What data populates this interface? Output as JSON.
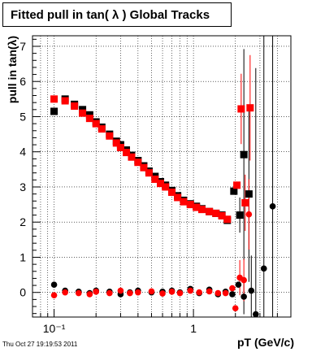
{
  "chart_data": {
    "type": "scatter",
    "title": "Fitted pull in tan( λ )  Global Tracks",
    "xlabel": "pT (GeV/c)",
    "ylabel": "pull in tan(λ)",
    "x_scale": "log",
    "xlim": [
      0.07,
      5.0
    ],
    "ylim": [
      -0.7,
      7.3
    ],
    "grid": true,
    "x_ticks": [
      {
        "value": 0.1,
        "label": "10⁻¹"
      },
      {
        "value": 1,
        "label": "1"
      }
    ],
    "y_ticks": [
      0,
      1,
      2,
      3,
      4,
      5,
      6,
      7
    ],
    "series": [
      {
        "color": "#000000",
        "marker": "square",
        "points": [
          [
            0.1,
            5.15
          ],
          [
            0.12,
            5.5
          ],
          [
            0.14,
            5.35
          ],
          [
            0.16,
            5.2
          ],
          [
            0.18,
            5.05
          ],
          [
            0.2,
            4.85
          ],
          [
            0.22,
            4.7
          ],
          [
            0.25,
            4.5
          ],
          [
            0.28,
            4.3
          ],
          [
            0.3,
            4.2
          ],
          [
            0.33,
            4.05
          ],
          [
            0.36,
            3.9
          ],
          [
            0.4,
            3.75
          ],
          [
            0.44,
            3.6
          ],
          [
            0.48,
            3.45
          ],
          [
            0.53,
            3.3
          ],
          [
            0.58,
            3.15
          ],
          [
            0.63,
            3.05
          ],
          [
            0.7,
            2.9
          ],
          [
            0.77,
            2.75
          ],
          [
            0.85,
            2.62
          ],
          [
            0.95,
            2.52
          ],
          [
            1.05,
            2.45
          ],
          [
            1.15,
            2.38
          ],
          [
            1.3,
            2.3
          ],
          [
            1.45,
            2.25
          ],
          [
            1.6,
            2.2
          ],
          [
            1.75,
            2.05
          ],
          [
            1.95,
            2.88
          ],
          [
            2.15,
            2.2
          ],
          [
            2.3,
            3.92
          ],
          [
            2.5,
            2.8
          ]
        ],
        "errors": [
          [
            2.15,
            0.5
          ],
          [
            2.3,
            3.0
          ],
          [
            2.5,
            2.5
          ]
        ]
      },
      {
        "color": "#ff0000",
        "marker": "square",
        "points": [
          [
            0.1,
            5.5
          ],
          [
            0.12,
            5.45
          ],
          [
            0.14,
            5.3
          ],
          [
            0.16,
            5.1
          ],
          [
            0.18,
            4.95
          ],
          [
            0.2,
            4.8
          ],
          [
            0.22,
            4.65
          ],
          [
            0.25,
            4.45
          ],
          [
            0.28,
            4.25
          ],
          [
            0.3,
            4.12
          ],
          [
            0.33,
            3.98
          ],
          [
            0.36,
            3.85
          ],
          [
            0.4,
            3.7
          ],
          [
            0.44,
            3.55
          ],
          [
            0.48,
            3.4
          ],
          [
            0.53,
            3.22
          ],
          [
            0.58,
            3.1
          ],
          [
            0.63,
            3.0
          ],
          [
            0.7,
            2.85
          ],
          [
            0.77,
            2.7
          ],
          [
            0.85,
            2.58
          ],
          [
            0.95,
            2.5
          ],
          [
            1.05,
            2.42
          ],
          [
            1.15,
            2.36
          ],
          [
            1.3,
            2.3
          ],
          [
            1.45,
            2.25
          ],
          [
            1.6,
            2.18
          ],
          [
            1.75,
            2.08
          ],
          [
            2.05,
            3.05
          ],
          [
            2.2,
            5.22
          ],
          [
            2.35,
            2.55
          ],
          [
            2.55,
            5.25
          ]
        ],
        "errors": [
          [
            2.2,
            1.0
          ],
          [
            2.35,
            0.8
          ],
          [
            2.55,
            1.5
          ]
        ]
      },
      {
        "color": "#000000",
        "marker": "circle",
        "points": [
          [
            0.1,
            0.22
          ],
          [
            0.12,
            0.05
          ],
          [
            0.15,
            0.02
          ],
          [
            0.18,
            -0.02
          ],
          [
            0.2,
            0.05
          ],
          [
            0.25,
            0.02
          ],
          [
            0.3,
            -0.05
          ],
          [
            0.35,
            0.0
          ],
          [
            0.4,
            0.05
          ],
          [
            0.5,
            0.0
          ],
          [
            0.6,
            0.02
          ],
          [
            0.7,
            0.05
          ],
          [
            0.8,
            0.0
          ],
          [
            0.95,
            0.1
          ],
          [
            1.1,
            -0.02
          ],
          [
            1.3,
            0.08
          ],
          [
            1.5,
            -0.05
          ],
          [
            1.7,
            0.02
          ],
          [
            1.9,
            -0.05
          ],
          [
            2.1,
            0.22
          ],
          [
            2.3,
            -0.12
          ],
          [
            2.6,
            0.05
          ],
          [
            2.8,
            -0.62
          ],
          [
            3.2,
            0.68
          ],
          [
            3.7,
            2.45
          ]
        ],
        "errors": [
          [
            2.3,
            0.5
          ],
          [
            2.6,
            1.0
          ],
          [
            2.8,
            7.0
          ],
          [
            3.2,
            7.0
          ],
          [
            3.7,
            7.0
          ]
        ]
      },
      {
        "color": "#ff0000",
        "marker": "circle",
        "points": [
          [
            0.1,
            -0.08
          ],
          [
            0.12,
            0.0
          ],
          [
            0.15,
            -0.02
          ],
          [
            0.18,
            -0.05
          ],
          [
            0.2,
            0.02
          ],
          [
            0.25,
            -0.02
          ],
          [
            0.3,
            0.05
          ],
          [
            0.35,
            -0.02
          ],
          [
            0.4,
            0.0
          ],
          [
            0.5,
            0.03
          ],
          [
            0.6,
            -0.03
          ],
          [
            0.7,
            0.02
          ],
          [
            0.8,
            -0.02
          ],
          [
            0.95,
            0.05
          ],
          [
            1.1,
            0.0
          ],
          [
            1.3,
            0.03
          ],
          [
            1.5,
            -0.02
          ],
          [
            1.7,
            -0.02
          ],
          [
            1.9,
            0.12
          ],
          [
            2.0,
            -0.45
          ],
          [
            2.15,
            0.42
          ],
          [
            2.3,
            0.35
          ],
          [
            2.5,
            2.22
          ]
        ],
        "errors": [
          [
            2.15,
            0.5
          ],
          [
            2.3,
            0.6
          ],
          [
            2.5,
            1.0
          ]
        ]
      }
    ]
  },
  "timestamp": "Thu Oct 27 19:19:53 2011"
}
